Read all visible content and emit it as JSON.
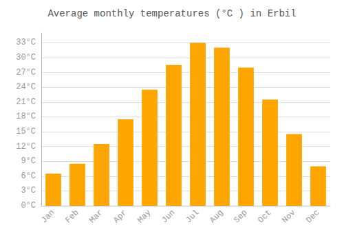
{
  "chart_data": {
    "type": "bar",
    "title": "Average monthly temperatures (°C ) in Erbil",
    "categories": [
      "Jan",
      "Feb",
      "Mar",
      "Apr",
      "May",
      "Jun",
      "Jul",
      "Aug",
      "Sep",
      "Oct",
      "Nov",
      "Dec"
    ],
    "values": [
      6.5,
      8.5,
      12.5,
      17.5,
      23.5,
      28.5,
      33.0,
      32.0,
      28.0,
      21.5,
      14.5,
      8.0
    ],
    "color": "#FFA500",
    "ylim": [
      0,
      35
    ],
    "yticks": [
      {
        "value": 0,
        "label": "0°C"
      },
      {
        "value": 3,
        "label": "3°C"
      },
      {
        "value": 6,
        "label": "6°C"
      },
      {
        "value": 9,
        "label": "9°C"
      },
      {
        "value": 12,
        "label": "12°C"
      },
      {
        "value": 15,
        "label": "15°C"
      },
      {
        "value": 18,
        "label": "18°C"
      },
      {
        "value": 21,
        "label": "21°C"
      },
      {
        "value": 24,
        "label": "24°C"
      },
      {
        "value": 27,
        "label": "27°C"
      },
      {
        "value": 30,
        "label": "30°C"
      },
      {
        "value": 33,
        "label": "33°C"
      }
    ],
    "grid": true
  }
}
